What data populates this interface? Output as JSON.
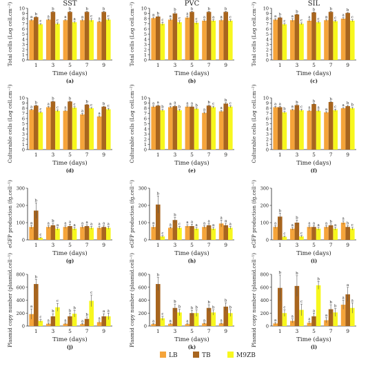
{
  "columns": [
    "SST",
    "PVC",
    "SIL"
  ],
  "legend": [
    {
      "name": "LB",
      "color": "#F5A43A"
    },
    {
      "name": "TB",
      "color": "#A8651E"
    },
    {
      "name": "M9ZB",
      "color": "#F7F71E"
    }
  ],
  "chart_data": [
    {
      "id": "a",
      "panel_label": "(a)",
      "type": "bar",
      "title": "SST",
      "ylabel": "Total cells (Log cell.cm⁻²)",
      "xlabel": "Time (days)",
      "categories": [
        "1",
        "3",
        "5",
        "7",
        "9"
      ],
      "ylim": [
        0,
        10
      ],
      "yticks": [
        0,
        1,
        2,
        3,
        4,
        5,
        6,
        7,
        8,
        9,
        10
      ],
      "series": [
        {
          "name": "LB",
          "values": [
            7.7,
            7.8,
            7.7,
            7.7,
            7.4
          ],
          "errors": [
            0.15,
            0.15,
            0.15,
            0.2,
            0.15
          ]
        },
        {
          "name": "TB",
          "values": [
            8.3,
            9.3,
            9.3,
            9.3,
            9.3
          ],
          "errors": [
            0.1,
            0.1,
            0.1,
            0.1,
            0.1
          ]
        },
        {
          "name": "M9ZB",
          "values": [
            6.9,
            7.0,
            7.3,
            7.7,
            7.8
          ],
          "errors": [
            0.15,
            0.2,
            0.2,
            0.3,
            0.2
          ]
        }
      ],
      "letters": [
        [
          "a",
          "b",
          "c"
        ],
        [
          "a",
          "b",
          "c"
        ],
        [
          "a",
          "b",
          "a"
        ],
        [
          "a",
          "b",
          "c"
        ],
        [
          "a",
          "b",
          "c"
        ]
      ]
    },
    {
      "id": "b",
      "panel_label": "(b)",
      "type": "bar",
      "title": "PVC",
      "ylabel": "Total cells (Log cell.cm⁻²)",
      "xlabel": "Time (days)",
      "categories": [
        "1",
        "3",
        "5",
        "7",
        "9"
      ],
      "ylim": [
        0,
        10
      ],
      "yticks": [
        0,
        1,
        2,
        3,
        4,
        5,
        6,
        7,
        8,
        9,
        10
      ],
      "series": [
        {
          "name": "LB",
          "values": [
            8.1,
            7.8,
            8.2,
            7.6,
            7.7
          ],
          "errors": [
            0.2,
            0.2,
            0.3,
            0.2,
            0.2
          ]
        },
        {
          "name": "TB",
          "values": [
            8.4,
            9.0,
            9.3,
            9.3,
            9.3
          ],
          "errors": [
            0.15,
            0.3,
            0.1,
            0.1,
            0.1
          ]
        },
        {
          "name": "M9ZB",
          "values": [
            7.0,
            7.3,
            7.2,
            7.6,
            7.6
          ],
          "errors": [
            0.3,
            0.3,
            0.3,
            0.2,
            0.2
          ]
        }
      ],
      "letters": [
        [
          "a",
          "b",
          "c"
        ],
        [
          "a",
          "b",
          "c"
        ],
        [
          "a",
          "b",
          "c"
        ],
        [
          "a",
          "b",
          "a"
        ],
        [
          "a",
          "b",
          "c"
        ]
      ]
    },
    {
      "id": "c",
      "panel_label": "(c)",
      "type": "bar",
      "title": "SIL",
      "ylabel": "Total cells (Log cell.cm⁻²)",
      "xlabel": "Time (days)",
      "categories": [
        "1",
        "3",
        "5",
        "7",
        "9"
      ],
      "ylim": [
        0,
        10
      ],
      "yticks": [
        0,
        1,
        2,
        3,
        4,
        5,
        6,
        7,
        8,
        9,
        10
      ],
      "series": [
        {
          "name": "LB",
          "values": [
            7.8,
            7.7,
            7.6,
            7.7,
            8.0
          ],
          "errors": [
            0.2,
            0.3,
            0.2,
            0.2,
            0.2
          ]
        },
        {
          "name": "TB",
          "values": [
            8.2,
            8.8,
            9.2,
            9.3,
            9.1
          ],
          "errors": [
            0.15,
            0.1,
            0.1,
            0.1,
            0.1
          ]
        },
        {
          "name": "M9ZB",
          "values": [
            6.9,
            7.0,
            7.3,
            7.5,
            7.6
          ],
          "errors": [
            0.2,
            0.2,
            0.2,
            0.2,
            0.2
          ]
        }
      ],
      "letters": [
        [
          "a",
          "b",
          "c"
        ],
        [
          "a",
          "b",
          "c"
        ],
        [
          "a",
          "b",
          "c"
        ],
        [
          "a",
          "b",
          "c"
        ],
        [
          "a",
          "b",
          "c"
        ]
      ]
    },
    {
      "id": "d",
      "panel_label": "(d)",
      "type": "bar",
      "ylabel": "Culturable cells (Log cell.cm⁻²)",
      "xlabel": "Time (days)",
      "categories": [
        "1",
        "3",
        "5",
        "7",
        "9"
      ],
      "ylim": [
        0,
        10
      ],
      "yticks": [
        0,
        1,
        2,
        3,
        4,
        5,
        6,
        7,
        8,
        9,
        10
      ],
      "series": [
        {
          "name": "LB",
          "values": [
            7.7,
            8.2,
            7.5,
            6.8,
            6.4
          ],
          "errors": [
            0.1,
            0.15,
            0.15,
            0.2,
            0.15
          ]
        },
        {
          "name": "TB",
          "values": [
            8.5,
            9.3,
            9.3,
            8.7,
            8.3
          ],
          "errors": [
            0.1,
            0.1,
            0.1,
            0.1,
            0.1
          ]
        },
        {
          "name": "M9ZB",
          "values": [
            7.2,
            7.5,
            8.1,
            8.0,
            7.8
          ],
          "errors": [
            0.15,
            0.2,
            0.2,
            0.15,
            0.2
          ]
        }
      ],
      "letters": [
        [
          "a",
          "b",
          "c"
        ],
        [
          "a",
          "b",
          "c"
        ],
        [
          "a",
          "b",
          "c"
        ],
        [
          "a",
          "b",
          "c"
        ],
        [
          "a",
          "b",
          "c"
        ]
      ]
    },
    {
      "id": "e",
      "panel_label": "(e)",
      "type": "bar",
      "ylabel": "Culturable cells (Log cell.cm⁻²)",
      "xlabel": "Time (days)",
      "categories": [
        "1",
        "3",
        "5",
        "7",
        "9"
      ],
      "ylim": [
        0,
        10
      ],
      "yticks": [
        0,
        1,
        2,
        3,
        4,
        5,
        6,
        7,
        8,
        9,
        10
      ],
      "series": [
        {
          "name": "LB",
          "values": [
            8.3,
            8.2,
            8.3,
            7.1,
            7.4
          ],
          "errors": [
            0.2,
            0.2,
            0.2,
            0.2,
            0.2
          ]
        },
        {
          "name": "TB",
          "values": [
            8.5,
            8.4,
            8.3,
            8.5,
            8.9
          ],
          "errors": [
            0.15,
            0.2,
            0.2,
            0.15,
            0.2
          ]
        },
        {
          "name": "M9ZB",
          "values": [
            7.6,
            7.6,
            7.9,
            8.2,
            8.3
          ],
          "errors": [
            0.2,
            0.2,
            0.2,
            0.2,
            0.2
          ]
        }
      ],
      "letters": [
        [
          "a",
          "a",
          "b"
        ],
        [
          "a",
          "a",
          "b"
        ],
        [
          "a",
          "a",
          "b"
        ],
        [
          "a",
          "b",
          "c"
        ],
        [
          "a",
          "b",
          "c"
        ]
      ]
    },
    {
      "id": "f",
      "panel_label": "(f)",
      "type": "bar",
      "ylabel": "Culturable cells (Log cell.cm⁻²)",
      "xlabel": "Time (days)",
      "categories": [
        "1",
        "3",
        "5",
        "7",
        "9"
      ],
      "ylim": [
        0,
        10
      ],
      "yticks": [
        0,
        1,
        2,
        3,
        4,
        5,
        6,
        7,
        8,
        9,
        10
      ],
      "series": [
        {
          "name": "LB",
          "values": [
            8.2,
            7.7,
            7.5,
            7.2,
            8.0
          ],
          "errors": [
            0.15,
            0.15,
            0.15,
            0.15,
            0.15
          ]
        },
        {
          "name": "TB",
          "values": [
            8.2,
            8.6,
            8.8,
            9.2,
            8.4
          ],
          "errors": [
            0.15,
            0.1,
            0.1,
            0.1,
            0.15
          ]
        },
        {
          "name": "M9ZB",
          "values": [
            7.2,
            7.6,
            7.5,
            7.6,
            8.0
          ],
          "errors": [
            0.2,
            0.2,
            0.2,
            0.2,
            0.2
          ]
        }
      ],
      "letters": [
        [
          "a",
          "a",
          "b"
        ],
        [
          "a",
          "b",
          "c"
        ],
        [
          "a",
          "b",
          "a"
        ],
        [
          "a",
          "b",
          "c"
        ],
        [
          "a",
          "b",
          "b"
        ]
      ]
    },
    {
      "id": "g",
      "panel_label": "(g)",
      "type": "bar",
      "ylabel": "eGFP production (fg.cell⁻¹)",
      "xlabel": "Time (days)",
      "categories": [
        "1",
        "3",
        "5",
        "7",
        "9"
      ],
      "ylim": [
        0,
        300
      ],
      "yticks": [
        0,
        100,
        200,
        300
      ],
      "series": [
        {
          "name": "LB",
          "values": [
            75,
            75,
            75,
            75,
            70
          ],
          "errors": [
            10,
            8,
            8,
            8,
            8
          ]
        },
        {
          "name": "TB",
          "values": [
            170,
            85,
            80,
            80,
            75
          ],
          "errors": [
            45,
            12,
            10,
            8,
            8
          ]
        },
        {
          "name": "M9ZB",
          "values": [
            12,
            65,
            65,
            70,
            70
          ],
          "errors": [
            4,
            8,
            8,
            8,
            8
          ]
        }
      ],
      "letters": [
        [
          "a",
          "b",
          "c"
        ],
        [
          "a",
          "b",
          "a"
        ],
        [
          "a",
          "a",
          "a"
        ],
        [
          "a",
          "a",
          "a"
        ],
        [
          "a",
          "a",
          "a"
        ]
      ]
    },
    {
      "id": "h",
      "panel_label": "(h)",
      "type": "bar",
      "ylabel": "eGFP production (fg.cell⁻¹)",
      "xlabel": "Time (days)",
      "categories": [
        "1",
        "3",
        "5",
        "7",
        "9"
      ],
      "ylim": [
        0,
        300
      ],
      "yticks": [
        0,
        100,
        200,
        300
      ],
      "series": [
        {
          "name": "LB",
          "values": [
            75,
            70,
            80,
            75,
            95
          ],
          "errors": [
            10,
            5,
            8,
            8,
            20
          ]
        },
        {
          "name": "TB",
          "values": [
            205,
            115,
            80,
            85,
            85
          ],
          "errors": [
            50,
            15,
            10,
            10,
            12
          ]
        },
        {
          "name": "M9ZB",
          "values": [
            20,
            70,
            65,
            65,
            70
          ],
          "errors": [
            5,
            8,
            8,
            8,
            8
          ]
        }
      ],
      "letters": [
        [
          "a",
          "b",
          "c"
        ],
        [
          "a",
          "b",
          "c"
        ],
        [
          "a",
          "a",
          "a"
        ],
        [
          "a",
          "a",
          "a"
        ],
        [
          "a",
          "a",
          "a"
        ]
      ]
    },
    {
      "id": "i",
      "panel_label": "(i)",
      "type": "bar",
      "ylabel": "eGFP production (fg.cell⁻¹)",
      "xlabel": "Time (days)",
      "categories": [
        "1",
        "3",
        "5",
        "7",
        "9"
      ],
      "ylim": [
        0,
        300
      ],
      "yticks": [
        0,
        100,
        200,
        300
      ],
      "series": [
        {
          "name": "LB",
          "values": [
            75,
            65,
            75,
            75,
            100
          ],
          "errors": [
            8,
            8,
            8,
            8,
            10
          ]
        },
        {
          "name": "TB",
          "values": [
            135,
            100,
            75,
            85,
            75
          ],
          "errors": [
            20,
            15,
            8,
            8,
            8
          ]
        },
        {
          "name": "M9ZB",
          "values": [
            18,
            20,
            65,
            65,
            65
          ],
          "errors": [
            4,
            5,
            8,
            8,
            8
          ]
        }
      ],
      "letters": [
        [
          "a",
          "b",
          "c"
        ],
        [
          "a",
          "b",
          "c"
        ],
        [
          "a",
          "a",
          "a"
        ],
        [
          "a",
          "b",
          "a"
        ],
        [
          "a",
          "b",
          "c"
        ]
      ]
    },
    {
      "id": "j",
      "panel_label": "(j)",
      "type": "bar",
      "ylabel": "Plasmid copy number (plasmid.cell⁻¹)",
      "xlabel": "Time (days)",
      "categories": [
        "1",
        "3",
        "5",
        "7",
        "9"
      ],
      "ylim": [
        0,
        800
      ],
      "yticks": [
        0,
        200,
        400,
        600,
        800
      ],
      "series": [
        {
          "name": "LB",
          "values": [
            185,
            35,
            35,
            30,
            60
          ],
          "errors": [
            80,
            15,
            15,
            10,
            20
          ]
        },
        {
          "name": "TB",
          "values": [
            650,
            150,
            150,
            110,
            150
          ],
          "errors": [
            70,
            40,
            50,
            30,
            40
          ]
        },
        {
          "name": "M9ZB",
          "values": [
            80,
            290,
            190,
            390,
            150
          ],
          "errors": [
            20,
            60,
            50,
            90,
            50
          ]
        }
      ],
      "letters": [
        [
          "a",
          "b",
          "c"
        ],
        [
          "a",
          "b",
          "c"
        ],
        [
          "a",
          "b",
          "b"
        ],
        [
          "a",
          "b",
          "c"
        ],
        [
          "a",
          "a",
          "a"
        ]
      ]
    },
    {
      "id": "k",
      "panel_label": "(k)",
      "type": "bar",
      "ylabel": "Plasmid copy number (plasmid.cell⁻¹)",
      "xlabel": "Time (days)",
      "categories": [
        "1",
        "3",
        "5",
        "7",
        "9"
      ],
      "ylim": [
        0,
        800
      ],
      "yticks": [
        0,
        200,
        400,
        600,
        800
      ],
      "series": [
        {
          "name": "LB",
          "values": [
            30,
            35,
            30,
            40,
            40
          ],
          "errors": [
            10,
            10,
            10,
            10,
            10
          ]
        },
        {
          "name": "TB",
          "values": [
            650,
            280,
            200,
            280,
            300
          ],
          "errors": [
            100,
            60,
            40,
            50,
            60
          ]
        },
        {
          "name": "M9ZB",
          "values": [
            120,
            210,
            200,
            210,
            200
          ],
          "errors": [
            30,
            50,
            50,
            40,
            50
          ]
        }
      ],
      "letters": [
        [
          "a",
          "b",
          "c"
        ],
        [
          "a",
          "b",
          "b"
        ],
        [
          "a",
          "b",
          "b"
        ],
        [
          "a",
          "b",
          "b"
        ],
        [
          "a",
          "b",
          "b"
        ]
      ]
    },
    {
      "id": "l",
      "panel_label": "(l)",
      "type": "bar",
      "ylabel": "Plasmid copy number (plasmid.cell⁻¹)",
      "xlabel": "Time (days)",
      "categories": [
        "1",
        "3",
        "5",
        "7",
        "9"
      ],
      "ylim": [
        0,
        800
      ],
      "yticks": [
        0,
        200,
        400,
        600,
        800
      ],
      "series": [
        {
          "name": "LB",
          "values": [
            40,
            80,
            50,
            90,
            330
          ],
          "errors": [
            15,
            30,
            20,
            40,
            70
          ]
        },
        {
          "name": "TB",
          "values": [
            590,
            620,
            150,
            260,
            490
          ],
          "errors": [
            200,
            160,
            50,
            70,
            110
          ]
        },
        {
          "name": "M9ZB",
          "values": [
            200,
            250,
            630,
            210,
            280
          ],
          "errors": [
            50,
            90,
            60,
            60,
            80
          ]
        }
      ],
      "letters": [
        [
          "a",
          "b",
          "c"
        ],
        [
          "a",
          "b",
          "c"
        ],
        [
          "a",
          "a",
          "b"
        ],
        [
          "a",
          "b",
          "b"
        ],
        [
          "a",
          "a",
          "a"
        ]
      ]
    }
  ]
}
